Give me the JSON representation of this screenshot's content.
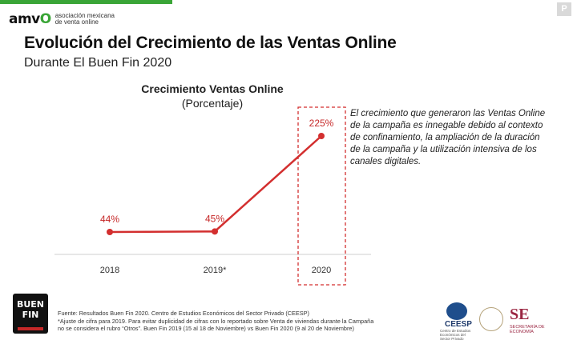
{
  "header": {
    "logo_mark_a": "amv",
    "logo_mark_b": "O",
    "logo_line1": "asociación mexicana",
    "logo_line2": "de venta online",
    "page_badge": "P"
  },
  "title": "Evolución del Crecimiento de las Ventas Online",
  "subtitle": "Durante El Buen Fin 2020",
  "chart_data": {
    "type": "line",
    "title": "Crecimiento Ventas Online",
    "subtitle": "(Porcentaje)",
    "categories": [
      "2018",
      "2019*",
      "2020"
    ],
    "values": [
      44,
      45,
      225
    ],
    "value_labels": [
      "44%",
      "45%",
      "225%"
    ],
    "highlight_category": "2020",
    "line_color": "#d32f2f",
    "label_color": "#c62828"
  },
  "note": "El crecimiento que generaron las Ventas Online de la campaña es innegable debido al contexto de confinamiento, la ampliación de la duración de la campaña y la utilización intensiva de los canales digitales.",
  "footer": {
    "buen_fin_line1": "BUEN",
    "buen_fin_line2": "FIN",
    "source_line1": "Fuente: Resultados Buen Fin 2020. Centro de Estudios Económicos del Sector Privado (CEESP)",
    "source_line2": "*Ajuste de cifra para 2019. Para evitar duplicidad de cifras con lo reportado sobre Venta de viviendas durante la Campaña",
    "source_line3": "no se considera el rubro “Otros”. Buen Fin 2019 (15 al 18 de Noviembre) vs Buen Fin 2020 (9 al 20 de Noviembre)",
    "ceesp_name": "CEESP",
    "ceesp_small": "Centro de Estudios Económicos del Sector Privado",
    "se_mark": "SE",
    "se_sub1": "SECRETARÍA DE",
    "se_sub2": "ECONOMÍA"
  }
}
